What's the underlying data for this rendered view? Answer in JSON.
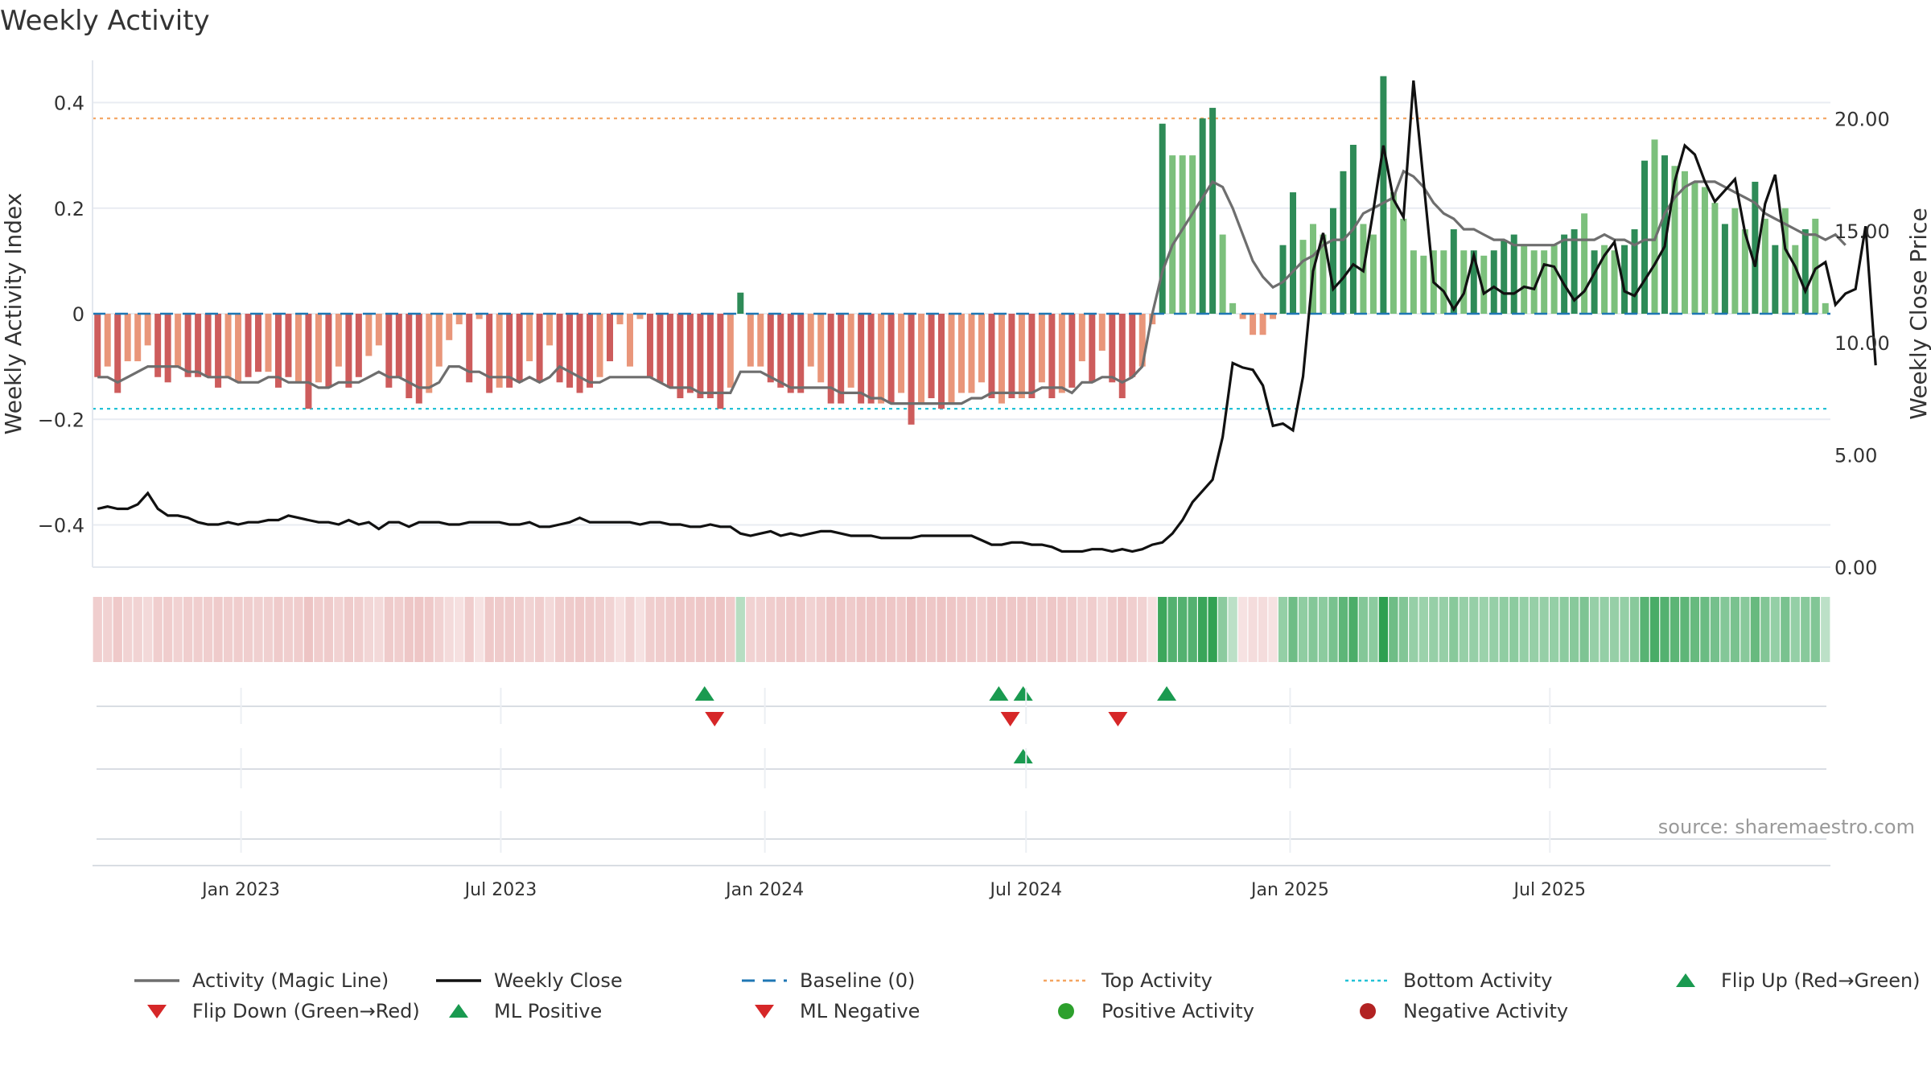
{
  "title": "Weekly Activity",
  "watermark": "source: sharemaestro.com",
  "colors": {
    "pos_strong": "#2e8b57",
    "pos_weak": "#7cc07c",
    "neg_strong": "#cd5c5c",
    "neg_weak": "#e9967a",
    "magic_line": "#6e6e6e",
    "close_line": "#111111",
    "baseline": "#1f77b4",
    "top_line": "#f4a460",
    "bottom_line": "#22c1d6",
    "up_marker": "#1a9a50",
    "down_marker": "#d62728",
    "pos_dot": "#2ca02c",
    "neg_dot": "#b22222"
  },
  "legend": [
    {
      "label": "Activity (Magic Line)",
      "symbol": "line-gray"
    },
    {
      "label": "Weekly Close",
      "symbol": "line-black"
    },
    {
      "label": "Baseline (0)",
      "symbol": "dash-blue"
    },
    {
      "label": "Top Activity",
      "symbol": "dot-orange"
    },
    {
      "label": "Bottom Activity",
      "symbol": "dot-cyan"
    },
    {
      "label": "Flip Up (Red→Green)",
      "symbol": "triangle-up-green"
    },
    {
      "label": "Flip Down (Green→Red)",
      "symbol": "triangle-down-red"
    },
    {
      "label": "ML Positive",
      "symbol": "triangle-up-green"
    },
    {
      "label": "ML Negative",
      "symbol": "triangle-down-red"
    },
    {
      "label": "Positive Activity",
      "symbol": "circle-green"
    },
    {
      "label": "Negative Activity",
      "symbol": "circle-red"
    }
  ],
  "chart_data": {
    "type": "bar",
    "ylabel": "Weekly Activity Index",
    "y2label": "Weekly Close Price",
    "ylim": [
      -0.48,
      0.48
    ],
    "y2lim": [
      0,
      22.6
    ],
    "yticks": [
      {
        "v": 0.4,
        "t": "0.4"
      },
      {
        "v": 0.2,
        "t": "0.2"
      },
      {
        "v": 0,
        "t": "0"
      },
      {
        "v": -0.2,
        "t": "−0.2"
      },
      {
        "v": -0.4,
        "t": "−0.4"
      }
    ],
    "y2ticks": [
      {
        "v": 20,
        "t": "20.00"
      },
      {
        "v": 15,
        "t": "15.00"
      },
      {
        "v": 10,
        "t": "10.00"
      },
      {
        "v": 5,
        "t": "5.00"
      },
      {
        "v": 0,
        "t": "0.00"
      }
    ],
    "x_start": "2022-09-23",
    "xticks": [
      {
        "date": "2023-01-01",
        "label": "Jan 2023"
      },
      {
        "date": "2023-07-01",
        "label": "Jul 2023"
      },
      {
        "date": "2024-01-01",
        "label": "Jan 2024"
      },
      {
        "date": "2024-07-01",
        "label": "Jul 2024"
      },
      {
        "date": "2025-01-01",
        "label": "Jan 2025"
      },
      {
        "date": "2025-07-01",
        "label": "Jul 2025"
      }
    ],
    "reference_lines": {
      "baseline": 0,
      "top_activity": 0.37,
      "bottom_activity": -0.18
    },
    "activity": [
      -0.12,
      -0.1,
      -0.15,
      -0.09,
      -0.09,
      -0.06,
      -0.12,
      -0.13,
      -0.1,
      -0.12,
      -0.12,
      -0.12,
      -0.14,
      -0.12,
      -0.13,
      -0.12,
      -0.11,
      -0.11,
      -0.14,
      -0.12,
      -0.13,
      -0.18,
      -0.13,
      -0.14,
      -0.1,
      -0.14,
      -0.12,
      -0.08,
      -0.06,
      -0.14,
      -0.12,
      -0.16,
      -0.17,
      -0.15,
      -0.1,
      -0.05,
      -0.02,
      -0.13,
      -0.01,
      -0.15,
      -0.14,
      -0.14,
      -0.13,
      -0.09,
      -0.13,
      -0.06,
      -0.13,
      -0.14,
      -0.15,
      -0.14,
      -0.12,
      -0.09,
      -0.02,
      -0.1,
      -0.01,
      -0.12,
      -0.13,
      -0.14,
      -0.16,
      -0.15,
      -0.16,
      -0.16,
      -0.18,
      -0.14,
      0.04,
      -0.1,
      -0.1,
      -0.13,
      -0.14,
      -0.15,
      -0.15,
      -0.1,
      -0.13,
      -0.17,
      -0.17,
      -0.14,
      -0.17,
      -0.17,
      -0.17,
      -0.17,
      -0.15,
      -0.21,
      -0.17,
      -0.16,
      -0.18,
      -0.17,
      -0.15,
      -0.15,
      -0.13,
      -0.16,
      -0.17,
      -0.16,
      -0.16,
      -0.16,
      -0.13,
      -0.16,
      -0.15,
      -0.14,
      -0.09,
      -0.13,
      -0.07,
      -0.13,
      -0.16,
      -0.12,
      -0.1,
      -0.02,
      0.36,
      0.3,
      0.3,
      0.3,
      0.37,
      0.39,
      0.15,
      0.02,
      -0.01,
      -0.04,
      -0.04,
      -0.01,
      0.13,
      0.23,
      0.14,
      0.17,
      0.15,
      0.2,
      0.27,
      0.32,
      0.17,
      0.15,
      0.45,
      0.23,
      0.18,
      0.12,
      0.11,
      0.12,
      0.12,
      0.16,
      0.12,
      0.12,
      0.11,
      0.12,
      0.14,
      0.15,
      0.13,
      0.12,
      0.12,
      0.13,
      0.15,
      0.16,
      0.19,
      0.12,
      0.13,
      0.12,
      0.13,
      0.16,
      0.29,
      0.33,
      0.3,
      0.28,
      0.27,
      0.25,
      0.24,
      0.21,
      0.17,
      0.2,
      0.16,
      0.25,
      0.18,
      0.13,
      0.2,
      0.13,
      0.16,
      0.18,
      0.02
    ],
    "activity_strength": [
      "s",
      "w",
      "s",
      "w",
      "w",
      "w",
      "s",
      "s",
      "w",
      "s",
      "s",
      "s",
      "s",
      "w",
      "w",
      "s",
      "s",
      "w",
      "s",
      "s",
      "w",
      "s",
      "w",
      "s",
      "w",
      "s",
      "s",
      "w",
      "w",
      "s",
      "s",
      "s",
      "s",
      "w",
      "w",
      "w",
      "w",
      "s",
      "w",
      "s",
      "w",
      "s",
      "s",
      "w",
      "s",
      "w",
      "s",
      "s",
      "s",
      "s",
      "w",
      "s",
      "w",
      "w",
      "w",
      "s",
      "s",
      "s",
      "s",
      "s",
      "s",
      "s",
      "s",
      "w",
      "s",
      "w",
      "w",
      "s",
      "s",
      "s",
      "s",
      "w",
      "w",
      "s",
      "s",
      "w",
      "s",
      "s",
      "w",
      "s",
      "w",
      "s",
      "w",
      "s",
      "s",
      "w",
      "w",
      "w",
      "w",
      "s",
      "w",
      "s",
      "w",
      "s",
      "w",
      "s",
      "w",
      "s",
      "w",
      "s",
      "w",
      "s",
      "s",
      "s",
      "w",
      "w",
      "s",
      "w",
      "w",
      "w",
      "s",
      "s",
      "w",
      "w",
      "w",
      "w",
      "w",
      "w",
      "s",
      "s",
      "w",
      "w",
      "w",
      "s",
      "s",
      "s",
      "w",
      "w",
      "s",
      "w",
      "w",
      "w",
      "w",
      "w",
      "w",
      "s",
      "w",
      "s",
      "w",
      "s",
      "s",
      "s",
      "w",
      "w",
      "w",
      "w",
      "s",
      "s",
      "w",
      "s",
      "w",
      "w",
      "s",
      "s",
      "s",
      "w",
      "s",
      "w",
      "w",
      "w",
      "w",
      "w",
      "s",
      "w",
      "w",
      "s",
      "w",
      "s",
      "w",
      "w",
      "s",
      "w",
      "w",
      "s",
      "w"
    ],
    "magic_line": [
      -0.12,
      -0.12,
      -0.13,
      -0.12,
      -0.11,
      -0.1,
      -0.1,
      -0.1,
      -0.1,
      -0.11,
      -0.11,
      -0.12,
      -0.12,
      -0.12,
      -0.13,
      -0.13,
      -0.13,
      -0.12,
      -0.12,
      -0.13,
      -0.13,
      -0.13,
      -0.14,
      -0.14,
      -0.13,
      -0.13,
      -0.13,
      -0.12,
      -0.11,
      -0.12,
      -0.12,
      -0.13,
      -0.14,
      -0.14,
      -0.13,
      -0.1,
      -0.1,
      -0.11,
      -0.11,
      -0.12,
      -0.12,
      -0.12,
      -0.13,
      -0.12,
      -0.13,
      -0.12,
      -0.1,
      -0.11,
      -0.12,
      -0.13,
      -0.13,
      -0.12,
      -0.12,
      -0.12,
      -0.12,
      -0.12,
      -0.13,
      -0.14,
      -0.14,
      -0.14,
      -0.15,
      -0.15,
      -0.15,
      -0.15,
      -0.11,
      -0.11,
      -0.11,
      -0.12,
      -0.13,
      -0.14,
      -0.14,
      -0.14,
      -0.14,
      -0.14,
      -0.15,
      -0.15,
      -0.15,
      -0.16,
      -0.16,
      -0.17,
      -0.17,
      -0.17,
      -0.17,
      -0.17,
      -0.17,
      -0.17,
      -0.17,
      -0.16,
      -0.16,
      -0.15,
      -0.15,
      -0.15,
      -0.15,
      -0.15,
      -0.14,
      -0.14,
      -0.14,
      -0.15,
      -0.13,
      -0.13,
      -0.12,
      -0.12,
      -0.13,
      -0.12,
      -0.1,
      0.0,
      0.08,
      0.13,
      0.16,
      0.19,
      0.22,
      0.25,
      0.24,
      0.2,
      0.15,
      0.1,
      0.07,
      0.05,
      0.06,
      0.08,
      0.1,
      0.11,
      0.13,
      0.14,
      0.14,
      0.16,
      0.19,
      0.2,
      0.21,
      0.22,
      0.27,
      0.26,
      0.24,
      0.21,
      0.19,
      0.18,
      0.16,
      0.16,
      0.15,
      0.14,
      0.14,
      0.13,
      0.13,
      0.13,
      0.13,
      0.13,
      0.14,
      0.14,
      0.14,
      0.14,
      0.15,
      0.14,
      0.14,
      0.13,
      0.14,
      0.14,
      0.19,
      0.22,
      0.24,
      0.25,
      0.25,
      0.25,
      0.24,
      0.23,
      0.22,
      0.21,
      0.19,
      0.18,
      0.17,
      0.16,
      0.15,
      0.15,
      0.14,
      0.15,
      0.13
    ],
    "weekly_close": [
      2.6,
      2.7,
      2.6,
      2.6,
      2.8,
      3.3,
      2.6,
      2.3,
      2.3,
      2.2,
      2.0,
      1.9,
      1.9,
      2.0,
      1.9,
      2.0,
      2.0,
      2.1,
      2.1,
      2.3,
      2.2,
      2.1,
      2.0,
      2.0,
      1.9,
      2.1,
      1.9,
      2.0,
      1.7,
      2.0,
      2.0,
      1.8,
      2.0,
      2.0,
      2.0,
      1.9,
      1.9,
      2.0,
      2.0,
      2.0,
      2.0,
      1.9,
      1.9,
      2.0,
      1.8,
      1.8,
      1.9,
      2.0,
      2.2,
      2.0,
      2.0,
      2.0,
      2.0,
      2.0,
      1.9,
      2.0,
      2.0,
      1.9,
      1.9,
      1.8,
      1.8,
      1.9,
      1.8,
      1.8,
      1.5,
      1.4,
      1.5,
      1.6,
      1.4,
      1.5,
      1.4,
      1.5,
      1.6,
      1.6,
      1.5,
      1.4,
      1.4,
      1.4,
      1.3,
      1.3,
      1.3,
      1.3,
      1.4,
      1.4,
      1.4,
      1.4,
      1.4,
      1.4,
      1.2,
      1.0,
      1.0,
      1.1,
      1.1,
      1.0,
      1.0,
      0.9,
      0.7,
      0.7,
      0.7,
      0.8,
      0.8,
      0.7,
      0.8,
      0.7,
      0.8,
      1.0,
      1.1,
      1.5,
      2.1,
      2.9,
      3.4,
      3.9,
      5.8,
      9.1,
      8.9,
      8.8,
      8.1,
      6.3,
      6.4,
      6.1,
      8.5,
      13.2,
      14.9,
      12.4,
      12.9,
      13.5,
      13.2,
      15.9,
      18.8,
      16.4,
      15.6,
      21.7,
      17.2,
      12.7,
      12.3,
      11.5,
      12.2,
      13.9,
      12.2,
      12.5,
      12.2,
      12.2,
      12.5,
      12.4,
      13.5,
      13.4,
      12.6,
      11.9,
      12.3,
      13.1,
      13.9,
      14.5,
      12.3,
      12.1,
      12.8,
      13.5,
      14.3,
      17.2,
      18.8,
      18.4,
      17.2,
      16.3,
      16.8,
      17.3,
      14.9,
      13.4,
      16.2,
      17.5,
      14.2,
      13.4,
      12.3,
      13.3,
      13.6,
      11.7,
      12.2,
      12.4,
      15.2,
      9.0
    ],
    "flip_up": [
      "2023-11-20",
      "2024-06-12",
      "2024-06-29",
      "2024-10-07"
    ],
    "flip_down": [
      "2023-11-27",
      "2024-06-20",
      "2024-09-03"
    ],
    "ml_positive": [
      "2024-06-29"
    ],
    "ml_negative": []
  }
}
